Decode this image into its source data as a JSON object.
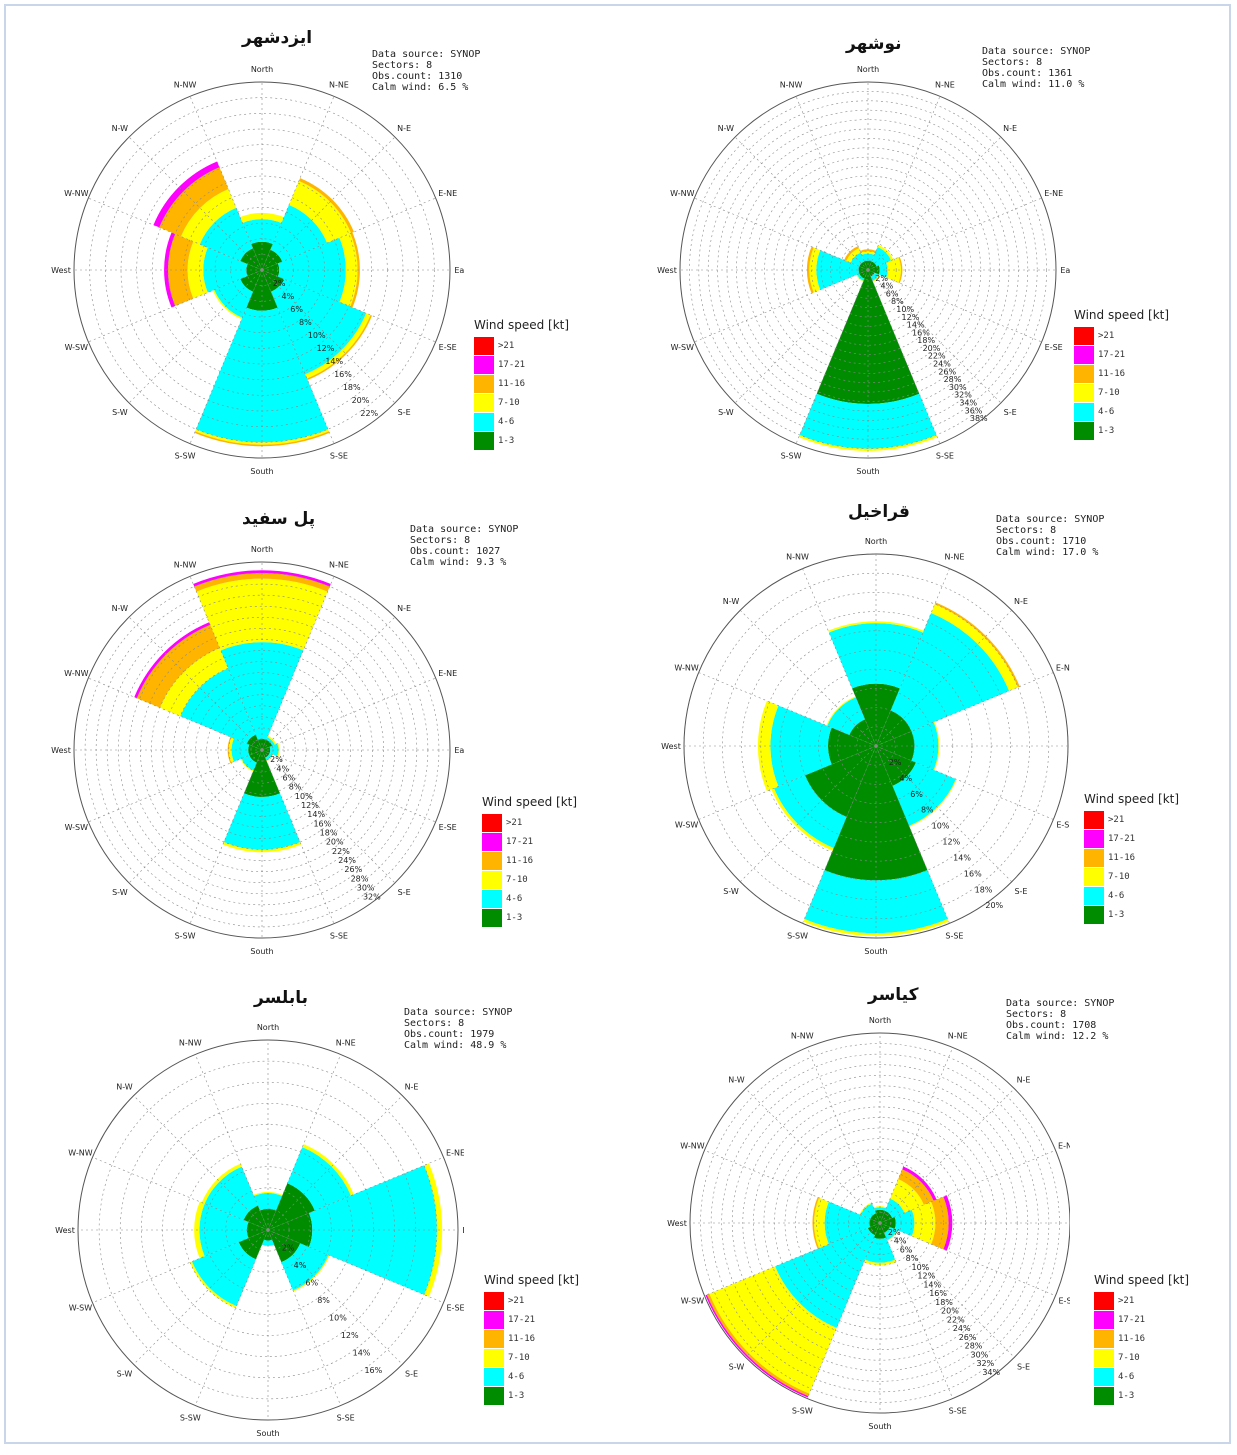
{
  "chart_data": [
    {
      "type": "wind-rose",
      "title": "ایزدشهر",
      "meta": {
        "source": "Data source: SYNOP",
        "sectors": "Sectors: 8",
        "obs": "Obs.count: 1310",
        "calm": "Calm wind: 6.5 %"
      },
      "directions": [
        "North",
        "N-NE",
        "N-E",
        "E-NE",
        "East",
        "E-SE",
        "S-E",
        "S-SE",
        "South",
        "S-SW",
        "S-W",
        "W-SW",
        "West",
        "W-NW",
        "N-W",
        "N-NW"
      ],
      "rings": [
        2,
        4,
        6,
        8,
        10,
        12,
        14,
        16,
        18,
        20,
        22
      ],
      "rmax": 24,
      "wedges": [
        {
          "dir": 0,
          "bands": [
            3.6,
            6.5,
            7.3,
            7.3,
            7.3,
            7.3
          ]
        },
        {
          "dir": 45,
          "bands": [
            2.8,
            9.0,
            12.3,
            12.7,
            12.7,
            12.7
          ]
        },
        {
          "dir": 90,
          "bands": [
            2.2,
            10.7,
            12.2,
            12.5,
            12.5,
            12.5
          ]
        },
        {
          "dir": 135,
          "bands": [
            3.0,
            14.4,
            15.0,
            15.2,
            15.2,
            15.2
          ]
        },
        {
          "dir": 180,
          "bands": [
            5.2,
            22.0,
            22.3,
            22.5,
            22.5,
            22.5
          ]
        },
        {
          "dir": 225,
          "bands": [
            3.0,
            6.6,
            6.8,
            6.8,
            6.8,
            6.8
          ]
        },
        {
          "dir": 270,
          "bands": [
            2.0,
            7.5,
            9.5,
            12.0,
            12.5,
            12.5
          ]
        },
        {
          "dir": 315,
          "bands": [
            3.0,
            8.6,
            11.2,
            14.2,
            15.0,
            15.0
          ]
        }
      ],
      "legend": {
        "title": "Wind speed [kt]",
        "labels": [
          ">21",
          "17-21",
          "11-16",
          "7-10",
          "4-6",
          "1-3"
        ]
      }
    },
    {
      "type": "wind-rose",
      "title": "نوشهر",
      "meta": {
        "source": "Data source: SYNOP",
        "sectors": "Sectors: 8",
        "obs": "Obs.count: 1361",
        "calm": "Calm wind: 11.0 %"
      },
      "directions": [
        "North",
        "N-NE",
        "N-E",
        "E-NE",
        "East",
        "E-SE",
        "S-E",
        "S-SE",
        "South",
        "S-SW",
        "S-W",
        "W-SW",
        "West",
        "W-NW",
        "N-W",
        "N-NW"
      ],
      "rings": [
        2,
        4,
        6,
        8,
        10,
        12,
        14,
        16,
        18,
        20,
        22,
        24,
        26,
        28,
        30,
        32,
        34,
        36,
        38
      ],
      "rmax": 40,
      "wedges": [
        {
          "dir": 0,
          "bands": [
            2.0,
            3.5,
            4.0,
            4.4,
            4.4,
            4.4
          ]
        },
        {
          "dir": 45,
          "bands": [
            2.0,
            5.3,
            5.8,
            5.8,
            5.8,
            5.8
          ]
        },
        {
          "dir": 90,
          "bands": [
            2.5,
            4.2,
            7.0,
            7.3,
            7.3,
            7.3
          ]
        },
        {
          "dir": 135,
          "bands": [
            1.5,
            2.5,
            2.7,
            2.7,
            2.7,
            2.7
          ]
        },
        {
          "dir": 180,
          "bands": [
            28.5,
            38.0,
            38.5,
            38.5,
            38.5,
            38.5
          ]
        },
        {
          "dir": 225,
          "bands": [
            2.0,
            2.5,
            2.7,
            2.7,
            2.7,
            2.7
          ]
        },
        {
          "dir": 270,
          "bands": [
            2.0,
            11.0,
            12.5,
            13.0,
            13.0,
            13.0
          ]
        },
        {
          "dir": 315,
          "bands": [
            2.0,
            4.0,
            5.0,
            5.5,
            5.5,
            5.5
          ]
        }
      ],
      "legend": {
        "title": "Wind speed [kt]",
        "labels": [
          ">21",
          "17-21",
          "11-16",
          "7-10",
          "4-6",
          "1-3"
        ]
      }
    },
    {
      "type": "wind-rose",
      "title": "پل سفید",
      "meta": {
        "source": "Data source: SYNOP",
        "sectors": "Sectors: 8",
        "obs": "Obs.count: 1027",
        "calm": "Calm wind: 9.3 %"
      },
      "directions": [
        "North",
        "N-NE",
        "N-E",
        "E-NE",
        "East",
        "E-SE",
        "S-E",
        "S-SE",
        "South",
        "S-SW",
        "S-W",
        "W-SW",
        "West",
        "W-NW",
        "N-W",
        "N-NW"
      ],
      "rings": [
        2,
        4,
        6,
        8,
        10,
        12,
        14,
        16,
        18,
        20,
        22,
        24,
        26,
        28,
        30,
        32
      ],
      "rmax": 34,
      "wedges": [
        {
          "dir": 0,
          "bands": [
            2.0,
            19.5,
            31.0,
            32.0,
            32.5,
            32.5
          ]
        },
        {
          "dir": 45,
          "bands": [
            2.0,
            2.5,
            2.8,
            2.8,
            2.8,
            2.8
          ]
        },
        {
          "dir": 90,
          "bands": [
            1.5,
            3.0,
            3.2,
            3.2,
            3.2,
            3.2
          ]
        },
        {
          "dir": 135,
          "bands": [
            1.5,
            2.0,
            2.2,
            2.2,
            2.2,
            2.2
          ]
        },
        {
          "dir": 180,
          "bands": [
            8.5,
            18.0,
            18.5,
            18.5,
            18.5,
            18.5
          ]
        },
        {
          "dir": 225,
          "bands": [
            2.5,
            4.0,
            4.2,
            4.2,
            4.2,
            4.2
          ]
        },
        {
          "dir": 270,
          "bands": [
            2.5,
            5.5,
            6.0,
            6.2,
            6.2,
            6.2
          ]
        },
        {
          "dir": 315,
          "bands": [
            3.0,
            16.0,
            20.0,
            24.5,
            25.0,
            25.0
          ]
        }
      ],
      "legend": {
        "title": "Wind speed [kt]",
        "labels": [
          ">21",
          "17-21",
          "11-16",
          "7-10",
          "4-6",
          "1-3"
        ]
      }
    },
    {
      "type": "wind-rose",
      "title": "قراخیل",
      "meta": {
        "source": "Data source: SYNOP",
        "sectors": "Sectors: 8",
        "obs": "Obs.count: 1710",
        "calm": "Calm wind: 17.0 %"
      },
      "directions": [
        "North",
        "N-NE",
        "N-E",
        "E-NE",
        "East",
        "E-SE",
        "S-E",
        "S-SE",
        "South",
        "S-SW",
        "S-W",
        "W-SW",
        "West",
        "W-NW",
        "N-W",
        "N-NW"
      ],
      "rings": [
        2,
        4,
        6,
        8,
        10,
        12,
        14,
        16,
        18,
        20
      ],
      "rmax": 20,
      "wedges": [
        {
          "dir": 0,
          "bands": [
            6.5,
            12.8,
            13.0,
            13.0,
            13.0,
            13.0
          ]
        },
        {
          "dir": 45,
          "bands": [
            4.0,
            15.0,
            16.0,
            16.2,
            16.2,
            16.2
          ]
        },
        {
          "dir": 90,
          "bands": [
            4.0,
            6.5,
            6.6,
            6.6,
            6.6,
            6.6
          ]
        },
        {
          "dir": 135,
          "bands": [
            4.5,
            9.0,
            9.1,
            9.1,
            9.1,
            9.1
          ]
        },
        {
          "dir": 180,
          "bands": [
            14.0,
            19.5,
            19.8,
            19.8,
            19.8,
            19.8
          ]
        },
        {
          "dir": 225,
          "bands": [
            8.0,
            11.5,
            11.8,
            11.8,
            11.8,
            11.8
          ]
        },
        {
          "dir": 270,
          "bands": [
            5.0,
            11.0,
            12.3,
            12.3,
            12.3,
            12.3
          ]
        },
        {
          "dir": 315,
          "bands": [
            3.0,
            5.5,
            5.6,
            5.6,
            5.6,
            5.6
          ]
        }
      ],
      "legend": {
        "title": "Wind speed [kt]",
        "labels": [
          ">21",
          "17-21",
          "11-16",
          "7-10",
          "4-6",
          "1-3"
        ]
      }
    },
    {
      "type": "wind-rose",
      "title": "بابلسر",
      "meta": {
        "source": "Data source: SYNOP",
        "sectors": "Sectors: 8",
        "obs": "Obs.count: 1979",
        "calm": "Calm wind: 48.9 %"
      },
      "directions": [
        "North",
        "N-NE",
        "N-E",
        "E-NE",
        "East",
        "E-SE",
        "S-E",
        "S-SE",
        "South",
        "S-SW",
        "S-W",
        "W-SW",
        "West",
        "W-NW",
        "N-W",
        "N-NW"
      ],
      "rings": [
        2,
        4,
        6,
        8,
        10,
        12,
        14,
        16
      ],
      "rmax": 18,
      "wedges": [
        {
          "dir": 0,
          "bands": [
            2.0,
            3.5,
            3.6,
            3.6,
            3.6,
            3.6
          ]
        },
        {
          "dir": 45,
          "bands": [
            4.8,
            8.5,
            8.8,
            8.8,
            8.8,
            8.8
          ]
        },
        {
          "dir": 90,
          "bands": [
            4.2,
            16.0,
            16.5,
            16.5,
            16.5,
            16.5
          ]
        },
        {
          "dir": 135,
          "bands": [
            3.3,
            6.2,
            6.3,
            6.3,
            6.3,
            6.3
          ]
        },
        {
          "dir": 180,
          "bands": [
            1.0,
            1.5,
            1.5,
            1.5,
            1.5,
            1.5
          ]
        },
        {
          "dir": 225,
          "bands": [
            3.0,
            7.8,
            8.0,
            8.0,
            8.0,
            8.0
          ]
        },
        {
          "dir": 270,
          "bands": [
            2.0,
            6.5,
            7.0,
            7.0,
            7.0,
            7.0
          ]
        },
        {
          "dir": 315,
          "bands": [
            2.5,
            6.5,
            6.8,
            6.8,
            6.8,
            6.8
          ]
        }
      ],
      "legend": {
        "title": "Wind speed [kt]",
        "labels": [
          ">21",
          "17-21",
          "11-16",
          "7-10",
          "4-6",
          "1-3"
        ]
      }
    },
    {
      "type": "wind-rose",
      "title": "کیاسر",
      "meta": {
        "source": "Data source: SYNOP",
        "sectors": "Sectors: 8",
        "obs": "Obs.count: 1708",
        "calm": "Calm wind: 12.2 %"
      },
      "directions": [
        "North",
        "N-NE",
        "N-E",
        "E-NE",
        "East",
        "E-SE",
        "S-E",
        "S-SE",
        "South",
        "S-SW",
        "S-W",
        "W-SW",
        "West",
        "W-NW",
        "N-W",
        "N-NW"
      ],
      "rings": [
        2,
        4,
        6,
        8,
        10,
        12,
        14,
        16,
        18,
        20,
        22,
        24,
        26,
        28,
        30,
        32,
        34
      ],
      "rmax": 36,
      "wedges": [
        {
          "dir": 0,
          "bands": [
            2.5,
            3.0,
            3.2,
            3.2,
            3.2,
            3.2
          ]
        },
        {
          "dir": 45,
          "bands": [
            2.5,
            5.0,
            9.0,
            11.0,
            11.6,
            11.6
          ]
        },
        {
          "dir": 90,
          "bands": [
            3.0,
            6.5,
            10.5,
            13.0,
            13.7,
            13.7
          ]
        },
        {
          "dir": 135,
          "bands": [
            2.0,
            3.5,
            3.6,
            3.6,
            3.6,
            3.6
          ]
        },
        {
          "dir": 180,
          "bands": [
            3.0,
            7.5,
            8.0,
            8.0,
            8.0,
            8.0
          ]
        },
        {
          "dir": 225,
          "bands": [
            2.5,
            21.5,
            35.0,
            35.5,
            35.8,
            35.8
          ]
        },
        {
          "dir": 270,
          "bands": [
            2.0,
            10.5,
            12.5,
            12.8,
            12.8,
            12.8
          ]
        },
        {
          "dir": 315,
          "bands": [
            2.0,
            4.0,
            4.2,
            4.2,
            4.2,
            4.2
          ]
        }
      ],
      "legend": {
        "title": "Wind speed [kt]",
        "labels": [
          ">21",
          "17-21",
          "11-16",
          "7-10",
          "4-6",
          "1-3"
        ]
      }
    }
  ],
  "colors": {
    "1-3": "#008c00",
    "4-6": "#00ffff",
    "7-10": "#ffff00",
    "11-16": "#ffb400",
    "17-21": "#ff00ff",
    ">21": "#ff0000"
  }
}
